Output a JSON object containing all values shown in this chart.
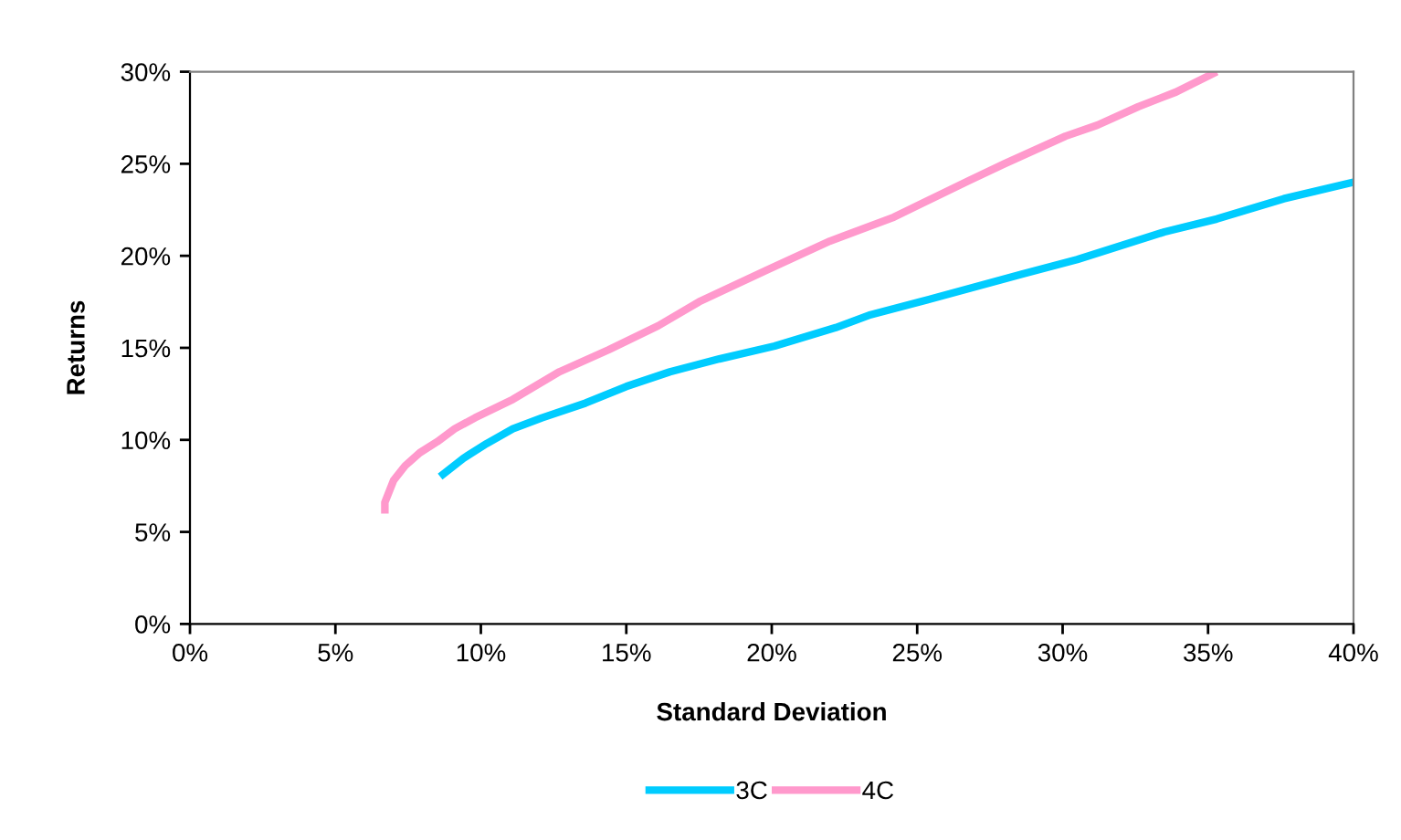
{
  "chart_data": {
    "type": "line",
    "xlabel": "Standard Deviation",
    "ylabel": "Returns",
    "series": [
      {
        "name": "3C",
        "color": "#00ccff",
        "x": [
          8.6,
          9.4,
          10.2,
          11.1,
          12.1,
          13.6,
          15.0,
          16.5,
          18.2,
          20.1,
          22.2,
          23.4,
          25.1,
          28.6,
          30.5,
          33.5,
          35.3,
          37.6,
          40.0
        ],
        "values": [
          8.0,
          9.0,
          9.8,
          10.6,
          11.2,
          12.0,
          12.9,
          13.7,
          14.4,
          15.1,
          16.1,
          16.8,
          17.5,
          19.0,
          19.8,
          21.3,
          22.0,
          23.1,
          24.0
        ]
      },
      {
        "name": "4C",
        "color": "#ff99cc",
        "x": [
          6.7,
          6.7,
          7.0,
          7.4,
          7.9,
          8.5,
          9.1,
          9.8,
          11.1,
          12.7,
          14.4,
          16.1,
          17.5,
          19.8,
          22.0,
          24.2,
          26.8,
          28.0,
          30.1,
          31.2,
          32.6,
          33.9,
          35.3
        ],
        "values": [
          6.0,
          6.6,
          7.8,
          8.6,
          9.3,
          9.9,
          10.6,
          11.2,
          12.2,
          13.7,
          14.9,
          16.2,
          17.5,
          19.2,
          20.8,
          22.1,
          24.1,
          25.0,
          26.5,
          27.1,
          28.1,
          28.9,
          30.0
        ]
      }
    ],
    "xlim": [
      0,
      40
    ],
    "ylim": [
      0,
      30
    ],
    "xticks": [
      {
        "value": 0,
        "label": "0%"
      },
      {
        "value": 5,
        "label": "5%"
      },
      {
        "value": 10,
        "label": "10%"
      },
      {
        "value": 15,
        "label": "15%"
      },
      {
        "value": 20,
        "label": "20%"
      },
      {
        "value": 25,
        "label": "25%"
      },
      {
        "value": 30,
        "label": "30%"
      },
      {
        "value": 35,
        "label": "35%"
      },
      {
        "value": 40,
        "label": "40%"
      }
    ],
    "yticks": [
      {
        "value": 0,
        "label": "0%"
      },
      {
        "value": 5,
        "label": "5%"
      },
      {
        "value": 10,
        "label": "10%"
      },
      {
        "value": 15,
        "label": "15%"
      },
      {
        "value": 20,
        "label": "20%"
      },
      {
        "value": 25,
        "label": "25%"
      },
      {
        "value": 30,
        "label": "30%"
      }
    ],
    "grid": false,
    "legend": "bottom",
    "marker": "none",
    "line_style": "solid"
  }
}
